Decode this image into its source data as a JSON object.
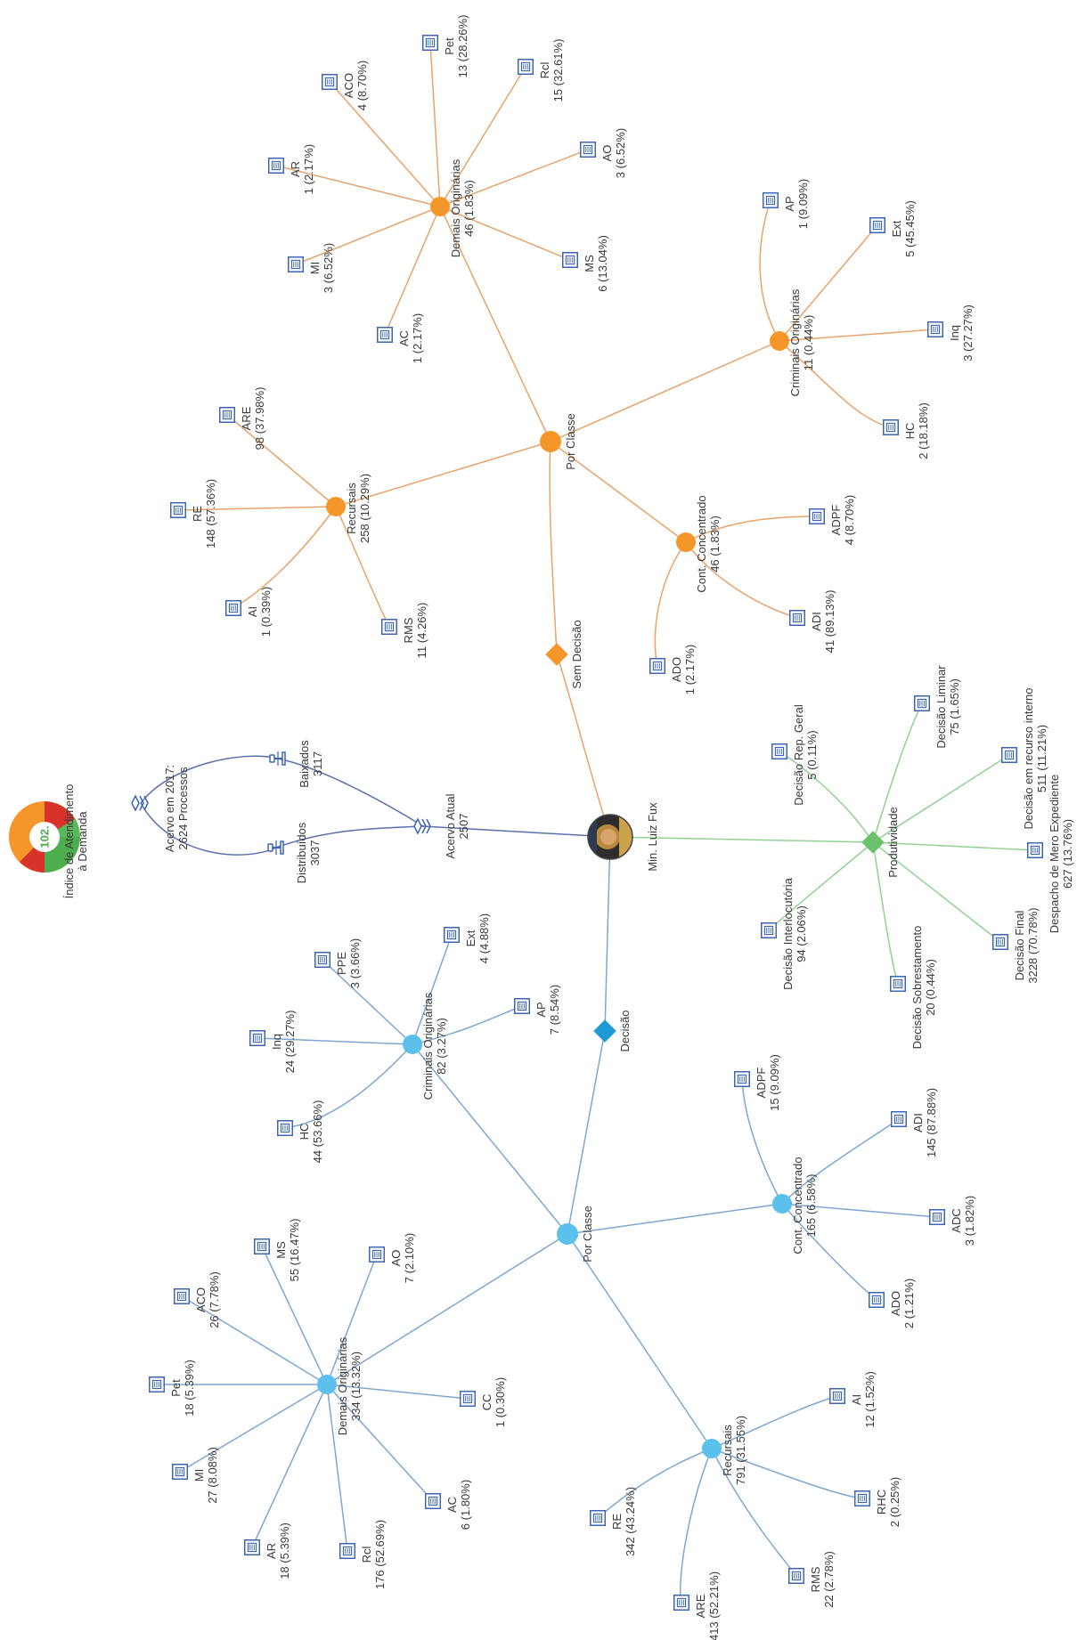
{
  "gauge": {
    "value": "102.",
    "label_line1": "Índice de Atendimento",
    "label_line2": "à Demanda",
    "colors": [
      "#d9322a",
      "#f5962a",
      "#5cb85c",
      "#4cae4c"
    ]
  },
  "colors": {
    "orange": "#f5962a",
    "orange_line": "#e8a36a",
    "blue": "#5bc0eb",
    "blue_line": "#7fa6d0",
    "green": "#6cc16c",
    "green_line": "#94d094",
    "icon": "#3a63b5",
    "hub_line": "#5a6fb0"
  },
  "center": {
    "name": "Min. Luiz Fux"
  },
  "acervo": {
    "inicial": {
      "line1": "Acervo em 2017:",
      "line2": "2624 Processos"
    },
    "baixados": {
      "name": "Baixados",
      "value": "3117"
    },
    "distribuidos": {
      "name": "Distribuídos",
      "value": "3037"
    },
    "atual": {
      "name": "Acervo Atual",
      "value": "2507"
    }
  },
  "sem_decisao": {
    "label": "Sem Decisão",
    "por_classe": "Por Classe",
    "groups": [
      {
        "name": "Demais Originárias",
        "value": "46 (1.83%)",
        "items": [
          {
            "name": "Pet",
            "value": "13 (28.26%)"
          },
          {
            "name": "Rcl",
            "value": "15 (32.61%)"
          },
          {
            "name": "AO",
            "value": "3 (6.52%)"
          },
          {
            "name": "MS",
            "value": "6 (13.04%)"
          },
          {
            "name": "AC",
            "value": "1 (2.17%)"
          },
          {
            "name": "MI",
            "value": "3 (6.52%)"
          },
          {
            "name": "AR",
            "value": "1 (2.17%)"
          },
          {
            "name": "ACO",
            "value": "4 (8.70%)"
          }
        ]
      },
      {
        "name": "Criminais Originárias",
        "value": "11 (0.44%)",
        "items": [
          {
            "name": "AP",
            "value": "1 (9.09%)"
          },
          {
            "name": "Ext",
            "value": "5 (45.45%)"
          },
          {
            "name": "Inq",
            "value": "3 (27.27%)"
          },
          {
            "name": "HC",
            "value": "2 (18.18%)"
          }
        ]
      },
      {
        "name": "Recursais",
        "value": "258 (10.29%)",
        "items": [
          {
            "name": "ARE",
            "value": "98 (37.98%)"
          },
          {
            "name": "RE",
            "value": "148 (57.36%)"
          },
          {
            "name": "AI",
            "value": "1 (0.39%)"
          },
          {
            "name": "RMS",
            "value": "11 (4.26%)"
          }
        ]
      },
      {
        "name": "Cont. Concentrado",
        "value": "46 (1.83%)",
        "items": [
          {
            "name": "ADPF",
            "value": "4 (8.70%)"
          },
          {
            "name": "ADI",
            "value": "41 (89.13%)"
          },
          {
            "name": "ADO",
            "value": "1 (2.17%)"
          }
        ]
      }
    ]
  },
  "produtividade": {
    "label": "Produtividade",
    "items": [
      {
        "name": "Decisão Rep. Geral",
        "value": "5 (0.11%)"
      },
      {
        "name": "Decisão Liminar",
        "value": "75 (1.65%)"
      },
      {
        "name": "Decisão em recurso interno",
        "value": "511 (11.21%)"
      },
      {
        "name": "Despacho de Mero Expediente",
        "value": "627 (13.76%)"
      },
      {
        "name": "Decisão Final",
        "value": "3228 (70.78%)"
      },
      {
        "name": "Decisão Sobrestamento",
        "value": "20 (0.44%)"
      },
      {
        "name": "Decisão Interlocutória",
        "value": "94 (2.06%)"
      }
    ]
  },
  "decisao": {
    "label": "Decisão",
    "por_classe": "Por Classe",
    "groups": [
      {
        "name": "Criminais Originárias",
        "value": "82 (3.27%)",
        "items": [
          {
            "name": "Ext",
            "value": "4 (4.88%)"
          },
          {
            "name": "PPE",
            "value": "3 (3.66%)"
          },
          {
            "name": "Inq",
            "value": "24 (29.27%)"
          },
          {
            "name": "HC",
            "value": "44 (53.66%)"
          },
          {
            "name": "AP",
            "value": "7 (8.54%)"
          }
        ]
      },
      {
        "name": "Cont. Concentrado",
        "value": "165 (6.58%)",
        "items": [
          {
            "name": "ADPF",
            "value": "15 (9.09%)"
          },
          {
            "name": "ADI",
            "value": "145 (87.88%)"
          },
          {
            "name": "ADC",
            "value": "3 (1.82%)"
          },
          {
            "name": "ADO",
            "value": "2 (1.21%)"
          }
        ]
      },
      {
        "name": "Demais Originárias",
        "value": "334 (13.32%)",
        "items": [
          {
            "name": "MS",
            "value": "55 (16.47%)"
          },
          {
            "name": "AO",
            "value": "7 (2.10%)"
          },
          {
            "name": "Pet",
            "value": "18 (5.39%)"
          },
          {
            "name": "ACO",
            "value": "26 (7.78%)"
          },
          {
            "name": "AR",
            "value": "18 (5.39%)"
          },
          {
            "name": "Rcl",
            "value": "176 (52.69%)"
          },
          {
            "name": "AC",
            "value": "6 (1.80%)"
          },
          {
            "name": "CC",
            "value": "1 (0.30%)"
          },
          {
            "name": "MI",
            "value": "27 (8.08%)"
          }
        ]
      },
      {
        "name": "Recursais",
        "value": "791 (31.55%)",
        "items": [
          {
            "name": "AI",
            "value": "12 (1.52%)"
          },
          {
            "name": "RHC",
            "value": "2 (0.25%)"
          },
          {
            "name": "RMS",
            "value": "22 (2.78%)"
          },
          {
            "name": "ARE",
            "value": "413 (52.21%)"
          },
          {
            "name": "RE",
            "value": "342 (43.24%)"
          }
        ]
      }
    ]
  }
}
